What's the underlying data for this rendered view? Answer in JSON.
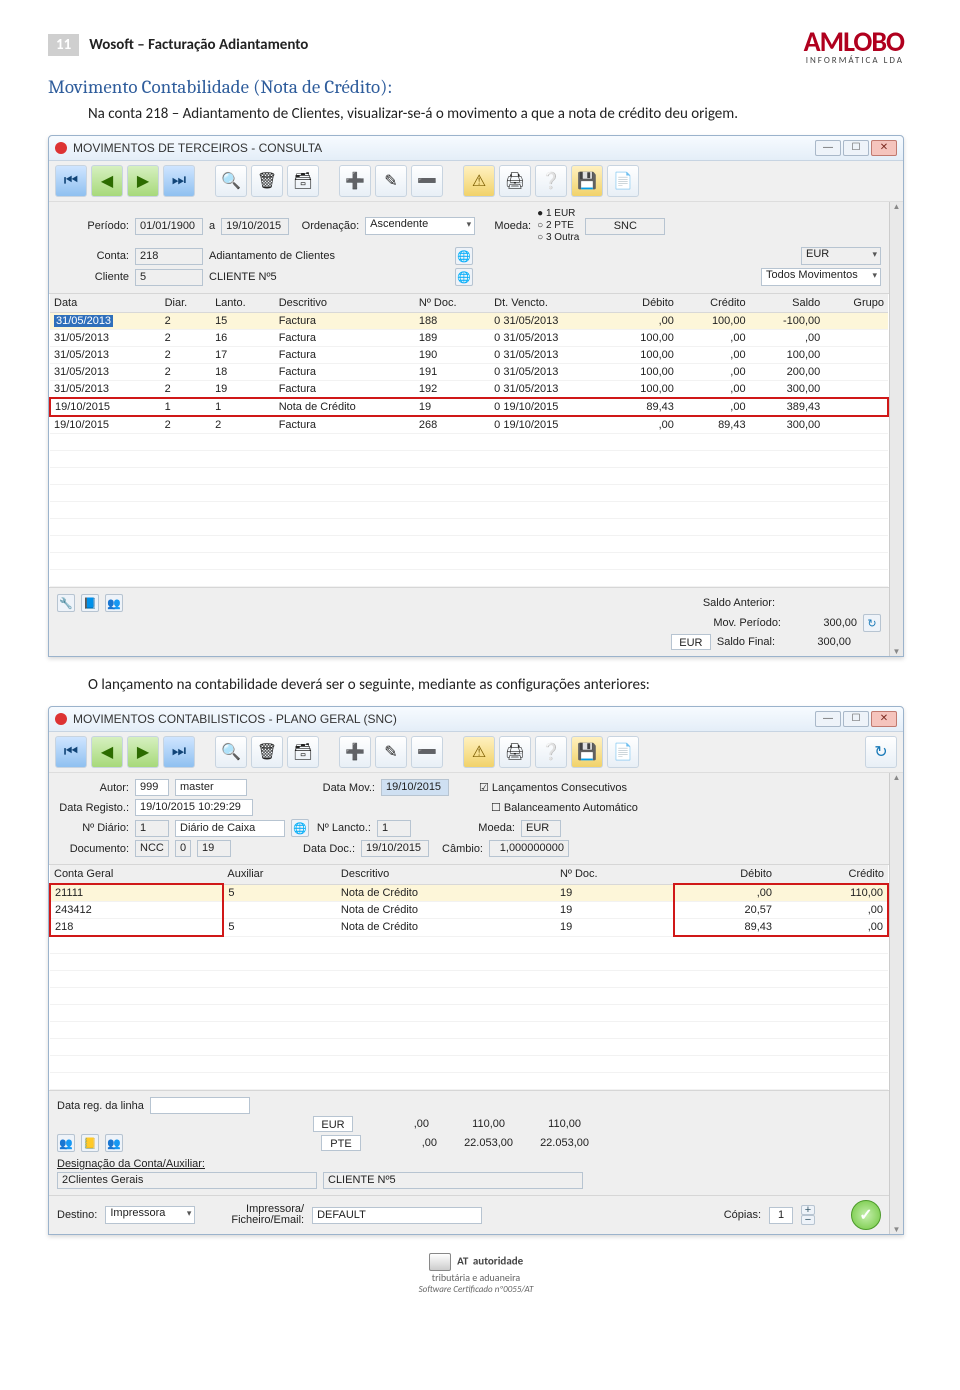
{
  "page": {
    "number": "11",
    "doc_title": "Wosoft – Facturação Adiantamento",
    "logo_main": "AMLOBO",
    "logo_sub": "INFORMÁTICA LDA",
    "section_heading": "Movimento Contabilidade (Nota de Crédito):",
    "intro_text": "Na conta 218 – Adiantamento de Clientes, visualizar-se-á o movimento a que a nota de crédito deu origem.",
    "mid_text": "O lançamento na contabilidade deverá ser o seguinte, mediante as configurações anteriores:"
  },
  "win1": {
    "title": "MOVIMENTOS DE TERCEIROS - CONSULTA",
    "labels": {
      "periodo": "Período:",
      "periodo_from": "01/01/1900",
      "a": "a",
      "periodo_to": "19/10/2015",
      "ordenacao": "Ordenação:",
      "ordenacao_val": "Ascendente",
      "moeda": "Moeda:",
      "moeda_opts": [
        "1 EUR",
        "2 PTE",
        "3 Outra"
      ],
      "snc": "SNC",
      "eur": "EUR",
      "conta": "Conta:",
      "conta_num": "218",
      "conta_desc": "Adiantamento de Clientes",
      "cliente": "Cliente",
      "cliente_num": "5",
      "cliente_desc": "CLIENTE Nº5",
      "todos_mov": "Todos Movimentos"
    },
    "columns": [
      "Data",
      "Diar.",
      "Lanto.",
      "Descritivo",
      "Nº Doc.",
      "Dt. Vencto.",
      "Débito",
      "Crédito",
      "Saldo",
      "Grupo"
    ],
    "rows": [
      {
        "hl": true,
        "sel": true,
        "data": "31/05/2013",
        "diar": "2",
        "lanto": "15",
        "desc": "Factura",
        "ndoc": "188",
        "dtv": "0  31/05/2013",
        "deb": ",00",
        "cred": "100,00",
        "saldo": "-100,00"
      },
      {
        "data": "31/05/2013",
        "diar": "2",
        "lanto": "16",
        "desc": "Factura",
        "ndoc": "189",
        "dtv": "0  31/05/2013",
        "deb": "100,00",
        "cred": ",00",
        "saldo": ",00"
      },
      {
        "data": "31/05/2013",
        "diar": "2",
        "lanto": "17",
        "desc": "Factura",
        "ndoc": "190",
        "dtv": "0  31/05/2013",
        "deb": "100,00",
        "cred": ",00",
        "saldo": "100,00"
      },
      {
        "data": "31/05/2013",
        "diar": "2",
        "lanto": "18",
        "desc": "Factura",
        "ndoc": "191",
        "dtv": "0  31/05/2013",
        "deb": "100,00",
        "cred": ",00",
        "saldo": "200,00"
      },
      {
        "data": "31/05/2013",
        "diar": "2",
        "lanto": "19",
        "desc": "Factura",
        "ndoc": "192",
        "dtv": "0  31/05/2013",
        "deb": "100,00",
        "cred": ",00",
        "saldo": "300,00"
      },
      {
        "red": true,
        "data": "19/10/2015",
        "diar": "1",
        "lanto": "1",
        "desc": "Nota de Crédito",
        "ndoc": "19",
        "dtv": "0  19/10/2015",
        "deb": "89,43",
        "cred": ",00",
        "saldo": "389,43"
      },
      {
        "data": "19/10/2015",
        "diar": "2",
        "lanto": "2",
        "desc": "Factura",
        "ndoc": "268",
        "dtv": "0  19/10/2015",
        "deb": ",00",
        "cred": "89,43",
        "saldo": "300,00"
      }
    ],
    "footer": {
      "saldo_ant_lbl": "Saldo Anterior:",
      "saldo_ant": "",
      "mov_per_lbl": "Mov. Período:",
      "mov_per": "300,00",
      "saldo_fin_lbl": "Saldo Final:",
      "saldo_fin": "300,00",
      "eur": "EUR"
    }
  },
  "win2": {
    "title": "MOVIMENTOS CONTABILISTICOS - PLANO GERAL (SNC)",
    "form": {
      "autor_lbl": "Autor:",
      "autor_num": "999",
      "autor_name": "master",
      "data_reg_lbl": "Data Registo.:",
      "data_reg": "19/10/2015 10:29:29",
      "ndiario_lbl": "Nº Diário:",
      "ndiario": "1",
      "diario_desc": "Diário de Caixa",
      "doc_lbl": "Documento:",
      "doc_tipo": "NCC",
      "doc_0": "0",
      "doc_n": "19",
      "datamov_lbl": "Data Mov.:",
      "datamov": "19/10/2015",
      "nlancto_lbl": "Nº Lancto.:",
      "nlancto": "1",
      "datadoc_lbl": "Data Doc.:",
      "datadoc": "19/10/2015",
      "cambio_lbl": "Câmbio:",
      "cambio": "1,000000000",
      "chk1": "Lançamentos Consecutivos",
      "chk2": "Balanceamento Automático",
      "moeda_lbl": "Moeda:",
      "moeda": "EUR"
    },
    "columns": [
      "Conta Geral",
      "Auxiliar",
      "Descritivo",
      "Nº Doc.",
      "Débito",
      "Crédito"
    ],
    "rows": [
      {
        "conta": "21111",
        "aux": "5",
        "desc": "Nota de Crédito",
        "ndoc": "19",
        "deb": ",00",
        "cred": "110,00"
      },
      {
        "conta": "243412",
        "aux": "",
        "desc": "Nota de Crédito",
        "ndoc": "19",
        "deb": "20,57",
        "cred": ",00"
      },
      {
        "conta": "218",
        "aux": "5",
        "desc": "Nota de Crédito",
        "ndoc": "19",
        "deb": "89,43",
        "cred": ",00"
      }
    ],
    "footer": {
      "data_reg_linha": "Data reg. da linha",
      "eur": "EUR",
      "pte": "PTE",
      "eur_a": ",00",
      "eur_b": "110,00",
      "eur_c": "110,00",
      "pte_a": ",00",
      "pte_b": "22.053,00",
      "pte_c": "22.053,00",
      "desig_lbl": "Designação da Conta/Auxiliar:",
      "desig_a": "2Clientes Gerais",
      "desig_b": "CLIENTE Nº5",
      "destino_lbl": "Destino:",
      "destino": "Impressora",
      "imp_lbl": "Impressora/\nFicheiro/Email:",
      "imp_val": "DEFAULT",
      "copias_lbl": "Cópias:",
      "copias": "1"
    }
  },
  "pagefoot": {
    "l1a": "AT",
    "l1b": "autoridade",
    "l1c": "tributária e aduaneira",
    "l2": "Software Certificado nº0055/AT"
  }
}
